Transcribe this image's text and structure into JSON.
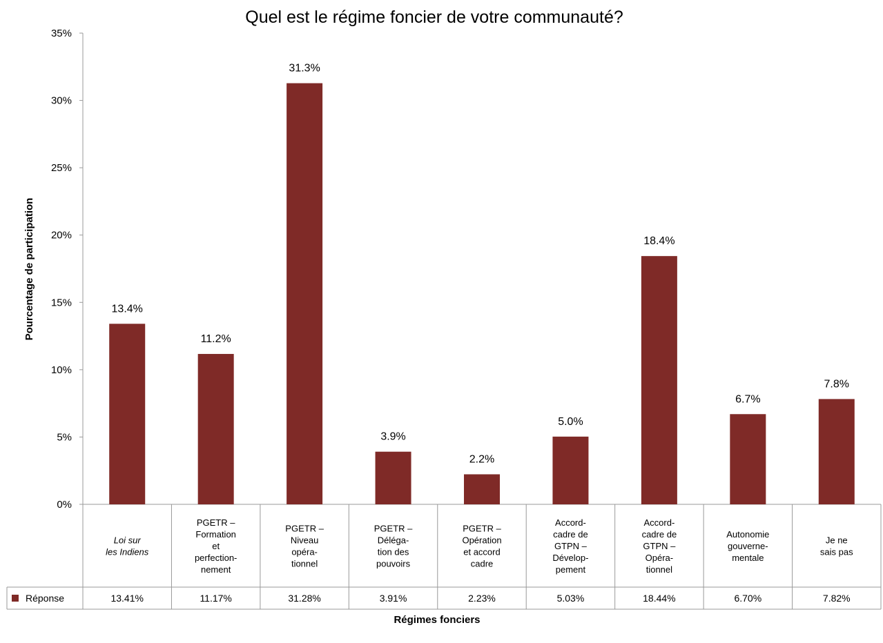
{
  "chart_data": {
    "type": "bar",
    "title": "Quel est le régime foncier de votre communauté?",
    "xlabel": "Régimes fonciers",
    "ylabel": "Pourcentage de participation",
    "ylim": [
      0,
      35
    ],
    "y_ticks": [
      "0%",
      "5%",
      "10%",
      "15%",
      "20%",
      "25%",
      "30%",
      "35%"
    ],
    "categories": [
      "Loi sur les Indiens",
      "PGETR – Formation et perfectionnement",
      "PGETR – Niveau opérationnel",
      "PGETR – Délégation des pouvoirs",
      "PGETR – Opération et accord cadre",
      "Accord-cadre de GTPN – Développement",
      "Accord-cadre de GTPN – Opérationnel",
      "Autonomie gouvernementale",
      "Je ne sais pas"
    ],
    "category_lines": [
      [
        "Loi sur",
        "les Indiens"
      ],
      [
        "PGETR –",
        "Formation",
        "et",
        "perfection-",
        "nement"
      ],
      [
        "PGETR –",
        "Niveau",
        "opéra-",
        "tionnel"
      ],
      [
        "PGETR –",
        "Déléga-",
        "tion des",
        "pouvoirs"
      ],
      [
        "PGETR –",
        "Opération",
        "et accord",
        "cadre"
      ],
      [
        "Accord-",
        "cadre de",
        "GTPN –",
        "Dévelop-",
        "pement"
      ],
      [
        "Accord-",
        "cadre de",
        "GTPN –",
        "Opéra-",
        "tionnel"
      ],
      [
        "Autonomie",
        "gouverne-",
        "mentale"
      ],
      [
        "Je ne",
        "sais pas"
      ]
    ],
    "series": [
      {
        "name": "Réponse",
        "values": [
          13.41,
          11.17,
          31.28,
          3.91,
          2.23,
          5.03,
          18.44,
          6.7,
          7.82
        ],
        "data_labels": [
          "13.4%",
          "11.2%",
          "31.3%",
          "3.9%",
          "2.2%",
          "5.0%",
          "18.4%",
          "6.7%",
          "7.8%"
        ],
        "table_values": [
          "13.41%",
          "11.17%",
          "31.28%",
          "3.91%",
          "2.23%",
          "5.03%",
          "18.44%",
          "6.70%",
          "7.82%"
        ],
        "color": "#7F2A27"
      }
    ],
    "grid": false,
    "legend": "data-table"
  }
}
